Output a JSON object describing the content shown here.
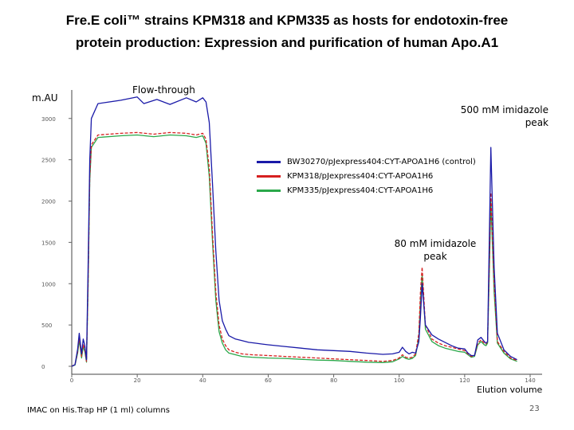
{
  "title": {
    "line1": "Fre.E coli™ strains KPM318 and KPM335 as hosts for endotoxin-free",
    "line2": "protein production:  Expression and purification of human Apo.A1"
  },
  "footer": "IMAC on His.Trap HP (1 ml) columns",
  "slide_number": "23",
  "chart_data": {
    "type": "line",
    "ylabel": "m.AU",
    "xlabel": "Elution volume",
    "xlim": [
      0,
      140
    ],
    "ylim": [
      0,
      3200
    ],
    "y_ticks": [
      0,
      500,
      1000,
      1500,
      2000,
      2500,
      3000
    ],
    "y_tick_labels": [
      "0",
      "500",
      "1000",
      "1500",
      "2000",
      "2500",
      "3000"
    ],
    "x_ticks": [
      0,
      20,
      40,
      60,
      80,
      100,
      120,
      140
    ],
    "x_tick_labels": [
      "0",
      "20",
      "40",
      "60",
      "80",
      "100",
      "120",
      "140"
    ],
    "annotations": [
      {
        "label": "Flow-through",
        "x": 20,
        "y": 3150
      },
      {
        "label_line1": "500 mM imidazole",
        "label_line2": "peak",
        "x": 127,
        "y": 2800
      },
      {
        "label_line1": "80 mM imidazole",
        "label_line2": "peak",
        "x": 106,
        "y": 1250
      }
    ],
    "legend_position": "center",
    "series": [
      {
        "name": "BW30270/pJexpress404:CYT-APOA1H6 (control)",
        "color": "#1a1aa8",
        "x": [
          0,
          1,
          1.8,
          2.3,
          3,
          3.5,
          4,
          4.5,
          5,
          5.5,
          6,
          8,
          15,
          20,
          22,
          26,
          30,
          35,
          38,
          40,
          41,
          42,
          43,
          44,
          45,
          46,
          47,
          48,
          50,
          52,
          54,
          56,
          58,
          60,
          65,
          70,
          75,
          80,
          85,
          90,
          95,
          98,
          100,
          101,
          102,
          103,
          104,
          105,
          106,
          106.5,
          107,
          108,
          110,
          112,
          114,
          116,
          118,
          120,
          121,
          122,
          123,
          124,
          125,
          126,
          126.5,
          127,
          127.5,
          128,
          129,
          130,
          132,
          134,
          136
        ],
        "y": [
          0,
          20,
          210,
          400,
          150,
          330,
          250,
          80,
          1200,
          2500,
          3000,
          3180,
          3220,
          3260,
          3180,
          3230,
          3170,
          3250,
          3200,
          3250,
          3200,
          2950,
          2200,
          1400,
          800,
          550,
          450,
          370,
          330,
          310,
          290,
          280,
          270,
          260,
          240,
          220,
          200,
          190,
          180,
          160,
          145,
          150,
          170,
          230,
          180,
          150,
          170,
          160,
          300,
          600,
          1000,
          500,
          380,
          330,
          290,
          250,
          220,
          210,
          160,
          130,
          130,
          320,
          350,
          300,
          280,
          300,
          1500,
          2650,
          1200,
          400,
          200,
          120,
          80
        ]
      },
      {
        "name": "KPM318/pJexpress404:CYT-APOA1H6",
        "color": "#d62020",
        "x": [
          0,
          1,
          1.8,
          2.3,
          3,
          3.5,
          4,
          4.5,
          5,
          5.5,
          6,
          8,
          15,
          20,
          25,
          30,
          35,
          38,
          40,
          41,
          42,
          43,
          44,
          45,
          46,
          47,
          48,
          50,
          52,
          55,
          60,
          65,
          70,
          75,
          80,
          85,
          90,
          95,
          98,
          100,
          101,
          102,
          103,
          104,
          105,
          106,
          106.5,
          107,
          108,
          110,
          112,
          114,
          116,
          118,
          120,
          121,
          122,
          123,
          124,
          125,
          126,
          126.5,
          127,
          127.5,
          128,
          129,
          130,
          132,
          134,
          136
        ],
        "y": [
          0,
          20,
          180,
          350,
          120,
          260,
          200,
          60,
          1000,
          2300,
          2680,
          2800,
          2820,
          2830,
          2810,
          2830,
          2820,
          2800,
          2820,
          2750,
          2400,
          1600,
          900,
          500,
          330,
          250,
          200,
          170,
          150,
          140,
          130,
          120,
          110,
          100,
          90,
          80,
          70,
          60,
          70,
          100,
          140,
          110,
          100,
          110,
          150,
          400,
          900,
          1200,
          500,
          330,
          280,
          250,
          230,
          210,
          190,
          150,
          120,
          130,
          280,
          320,
          280,
          270,
          300,
          1200,
          2100,
          1000,
          300,
          180,
          100,
          70
        ]
      },
      {
        "name": "KPM335/pJexpress404:CYT-APOA1H6",
        "color": "#2aa84a",
        "x": [
          0,
          1,
          1.8,
          2.3,
          3,
          3.5,
          4,
          4.5,
          5,
          5.5,
          6,
          8,
          15,
          20,
          25,
          30,
          35,
          38,
          40,
          41,
          42,
          43,
          44,
          45,
          46,
          47,
          48,
          50,
          52,
          55,
          60,
          65,
          70,
          75,
          80,
          85,
          90,
          95,
          98,
          100,
          101,
          102,
          103,
          104,
          105,
          106,
          106.5,
          107,
          108,
          110,
          112,
          114,
          116,
          118,
          120,
          121,
          122,
          123,
          124,
          125,
          126,
          126.5,
          127,
          127.5,
          128,
          129,
          130,
          132,
          134,
          136
        ],
        "y": [
          0,
          15,
          160,
          320,
          100,
          240,
          180,
          50,
          950,
          2250,
          2650,
          2770,
          2790,
          2800,
          2780,
          2800,
          2790,
          2770,
          2790,
          2700,
          2300,
          1500,
          800,
          420,
          280,
          200,
          160,
          140,
          120,
          110,
          100,
          95,
          85,
          75,
          70,
          60,
          50,
          45,
          55,
          90,
          120,
          95,
          85,
          95,
          130,
          350,
          800,
          1100,
          450,
          300,
          250,
          220,
          200,
          180,
          170,
          140,
          110,
          120,
          260,
          300,
          260,
          250,
          280,
          1100,
          2000,
          900,
          280,
          160,
          90,
          60
        ]
      }
    ]
  }
}
